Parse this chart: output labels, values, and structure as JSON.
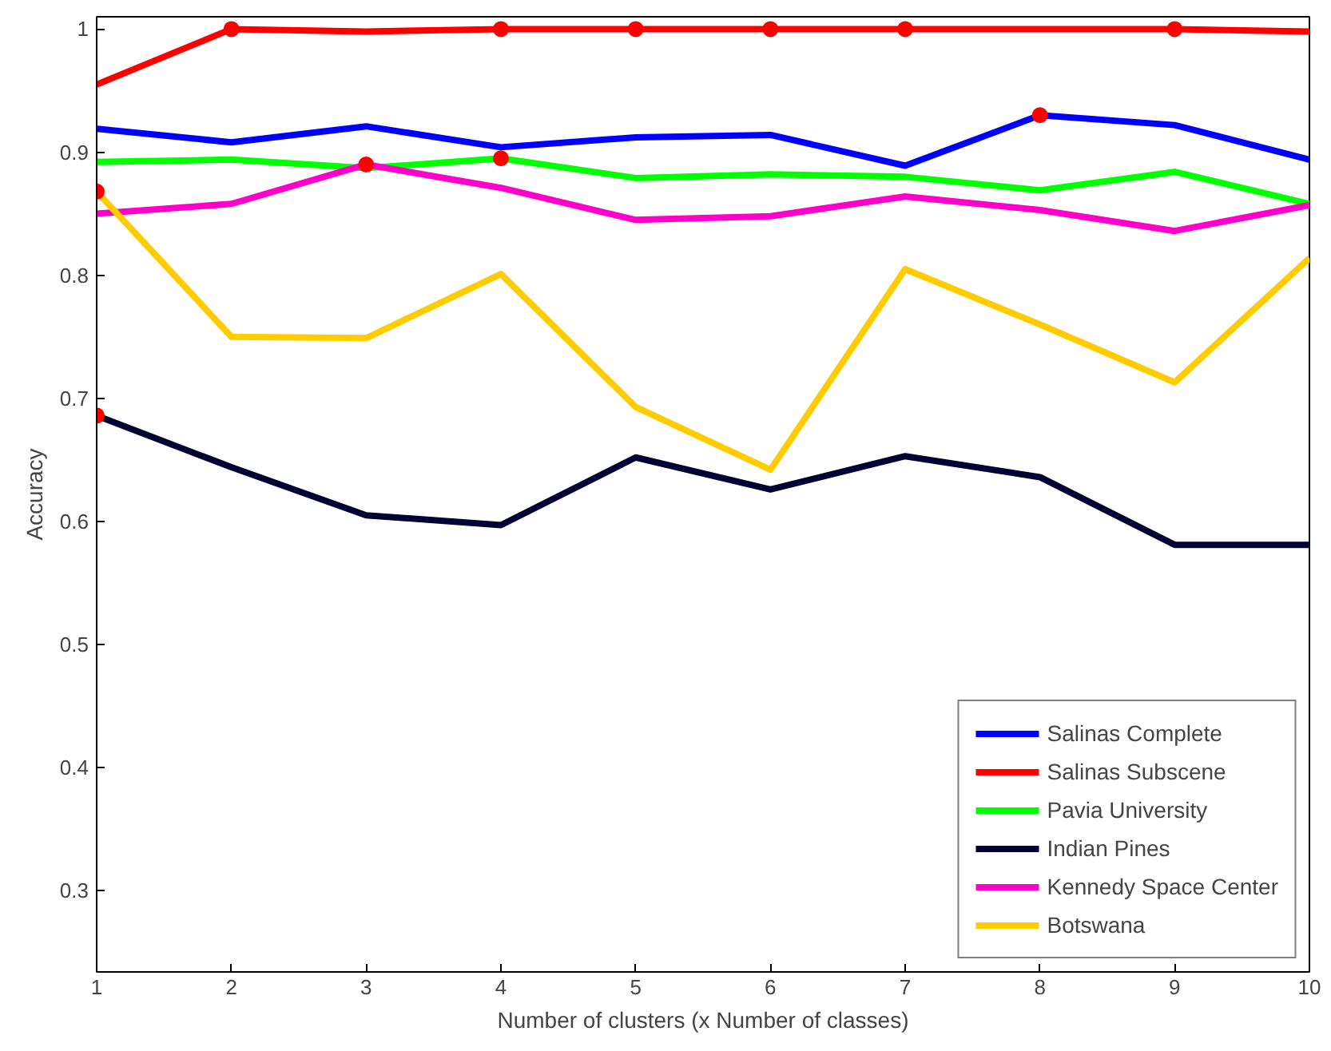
{
  "chart_data": {
    "type": "line",
    "xlabel": "Number of clusters (x Number of classes)",
    "ylabel": "Accuracy",
    "x": [
      1,
      2,
      3,
      4,
      5,
      6,
      7,
      8,
      9,
      10
    ],
    "xlim": [
      1,
      10
    ],
    "xticks": [
      1,
      2,
      3,
      4,
      5,
      6,
      7,
      8,
      9,
      10
    ],
    "ylim": [
      0.234,
      1.01
    ],
    "yticks": [
      0.3,
      0.4,
      0.5,
      0.6,
      0.7,
      0.8,
      0.9,
      1
    ],
    "grid": false,
    "legend": "bottom right",
    "marker": "none",
    "line_style": "solid",
    "series": [
      {
        "name": "Salinas Complete",
        "color": "#0000ff",
        "values": [
          0.919,
          0.908,
          0.921,
          0.904,
          0.912,
          0.914,
          0.889,
          0.93,
          0.922,
          0.894
        ]
      },
      {
        "name": "Salinas Subscene",
        "color": "#ff0000",
        "values": [
          0.955,
          1.0,
          0.998,
          1.0,
          1.0,
          1.0,
          1.0,
          1.0,
          1.0,
          0.998
        ]
      },
      {
        "name": "Pavia University",
        "color": "#00ff00",
        "values": [
          0.892,
          0.894,
          0.887,
          0.895,
          0.879,
          0.882,
          0.88,
          0.869,
          0.884,
          0.858
        ]
      },
      {
        "name": "Indian Pines",
        "color": "#000033",
        "values": [
          0.686,
          0.644,
          0.605,
          0.597,
          0.652,
          0.626,
          0.653,
          0.636,
          0.581,
          0.581
        ]
      },
      {
        "name": "Kennedy Space Center",
        "color": "#ff00cc",
        "values": [
          0.85,
          0.858,
          0.89,
          0.871,
          0.845,
          0.848,
          0.864,
          0.853,
          0.836,
          0.857
        ]
      },
      {
        "name": "Botswana",
        "color": "#ffcc00",
        "values": [
          0.868,
          0.75,
          0.749,
          0.801,
          0.693,
          0.642,
          0.805,
          0.76,
          0.713,
          0.814
        ]
      },
      {
        "type": "scatter",
        "marker": "circle",
        "color": "#ff0000",
        "x": [
          1,
          1,
          2,
          3,
          4,
          4,
          5,
          6,
          7,
          8,
          9
        ],
        "values": [
          0.868,
          0.686,
          1.0,
          0.89,
          0.895,
          1.0,
          1.0,
          1.0,
          1.0,
          0.93,
          1.0
        ]
      }
    ]
  }
}
